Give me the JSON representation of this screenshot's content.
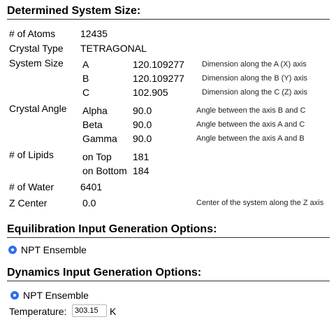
{
  "system_size_section": {
    "title": "Determined System Size:",
    "atoms": {
      "label": "# of Atoms",
      "value": "12435"
    },
    "crystal_type": {
      "label": "Crystal Type",
      "value": "TETRAGONAL"
    },
    "system_size": {
      "label": "System Size",
      "rows": [
        {
          "axis": "A",
          "value": "120.109277",
          "desc": "Dimension along the A (X) axis"
        },
        {
          "axis": "B",
          "value": "120.109277",
          "desc": "Dimension along the B (Y) axis"
        },
        {
          "axis": "C",
          "value": "102.905",
          "desc": "Dimension along the C (Z) axis"
        }
      ]
    },
    "crystal_angle": {
      "label": "Crystal Angle",
      "rows": [
        {
          "name": "Alpha",
          "value": "90.0",
          "desc": "Angle between the axis B and C"
        },
        {
          "name": "Beta",
          "value": "90.0",
          "desc": "Angle between the axis A and C"
        },
        {
          "name": "Gamma",
          "value": "90.0",
          "desc": "Angle between the axis A and B"
        }
      ]
    },
    "lipids": {
      "label": "# of Lipids",
      "rows": [
        {
          "name": "on Top",
          "value": "181"
        },
        {
          "name": "on Bottom",
          "value": "184"
        }
      ]
    },
    "water": {
      "label": "# of Water",
      "value": "6401"
    },
    "z_center": {
      "label": "Z Center",
      "value": "0.0",
      "desc": "Center of the system along the Z axis"
    }
  },
  "equilibration_section": {
    "title": "Equilibration Input Generation Options:",
    "radio_label": "NPT Ensemble"
  },
  "dynamics_section": {
    "title": "Dynamics Input Generation Options:",
    "radio_label": "NPT Ensemble",
    "temperature": {
      "label": "Temperature:",
      "value": "303.15",
      "unit": "K"
    }
  },
  "colors": {
    "radio_accent": "#2f6ff0"
  }
}
